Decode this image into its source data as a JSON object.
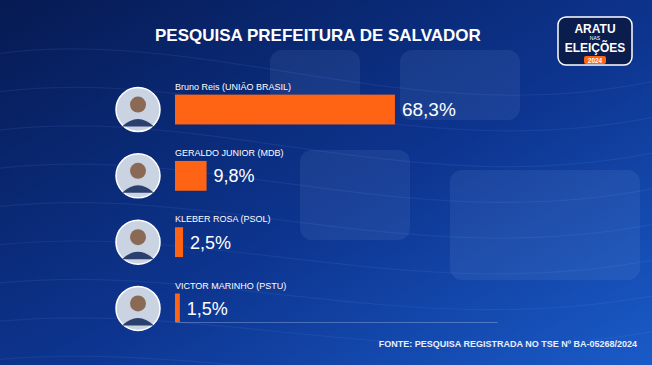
{
  "chart_data": {
    "type": "bar",
    "orientation": "horizontal",
    "title": "PESQUISA PREFEITURA DE SALVADOR",
    "categories": [
      "Bruno Reis (UNIÃO BRASIL)",
      "GERALDO JUNIOR (MDB)",
      "KLEBER ROSA (PSOL)",
      "VICTOR MARINHO (PSTU)"
    ],
    "values": [
      68.3,
      9.8,
      2.5,
      1.5
    ],
    "value_labels": [
      "68,3%",
      "9,8%",
      "2,5%",
      "1,5%"
    ],
    "color": "#ff6414",
    "xlim": [
      0,
      100
    ],
    "grid": false,
    "data_labels": true,
    "source": "FONTE: PESQUISA REGISTRADA NO TSE Nº BA-05268/2024",
    "logo": {
      "line1": "ARATU",
      "line2": "NAS",
      "line3": "ELEIÇÕES",
      "year": "2024"
    }
  }
}
